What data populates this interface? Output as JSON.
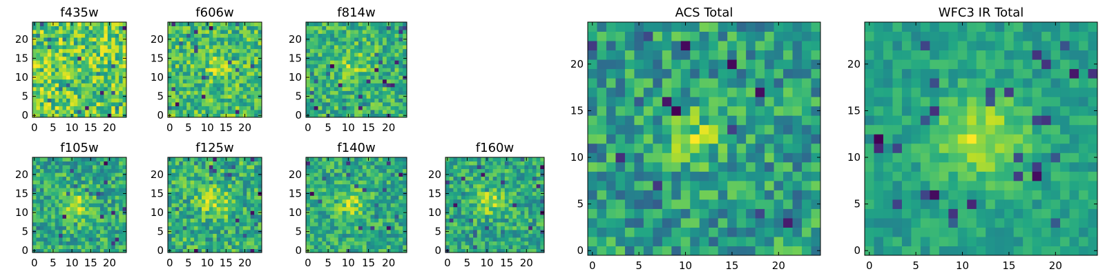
{
  "chart_data": [
    {
      "type": "heatmap",
      "title": "f435w",
      "xlim": [
        -0.5,
        24.5
      ],
      "ylim": [
        -0.5,
        24.5
      ],
      "xticks": [
        0,
        5,
        10,
        15,
        20
      ],
      "yticks": [
        0,
        5,
        10,
        15,
        20
      ],
      "grid": false,
      "colormap": "viridis",
      "image_size": [
        25,
        25
      ],
      "peak_center": null,
      "noise_character": "dense uniform noise with scattered dark pixels"
    },
    {
      "type": "heatmap",
      "title": "f606w",
      "xlim": [
        -0.5,
        24.5
      ],
      "ylim": [
        -0.5,
        24.5
      ],
      "xticks": [
        0,
        5,
        10,
        15,
        20
      ],
      "yticks": [
        0,
        5,
        10,
        15,
        20
      ],
      "grid": false,
      "colormap": "viridis",
      "image_size": [
        25,
        25
      ],
      "peak_center": [
        12,
        13
      ],
      "noise_character": "noisy with faint central brightening"
    },
    {
      "type": "heatmap",
      "title": "f814w",
      "xlim": [
        -0.5,
        24.5
      ],
      "ylim": [
        -0.5,
        24.5
      ],
      "xticks": [
        0,
        5,
        10,
        15,
        20
      ],
      "yticks": [
        0,
        5,
        10,
        15,
        20
      ],
      "grid": false,
      "colormap": "viridis",
      "image_size": [
        25,
        25
      ],
      "peak_center": [
        11,
        13
      ],
      "noise_character": "noisy with faint central source"
    },
    {
      "type": "heatmap",
      "title": "f105w",
      "xlim": [
        -0.5,
        24.5
      ],
      "ylim": [
        -0.5,
        24.5
      ],
      "xticks": [
        0,
        5,
        10,
        15,
        20
      ],
      "yticks": [
        0,
        5,
        10,
        15,
        20
      ],
      "grid": false,
      "colormap": "viridis",
      "image_size": [
        25,
        25
      ],
      "peak_center": [
        11,
        12
      ],
      "noise_character": "central bright source with noise"
    },
    {
      "type": "heatmap",
      "title": "f125w",
      "xlim": [
        -0.5,
        24.5
      ],
      "ylim": [
        -0.5,
        24.5
      ],
      "xticks": [
        0,
        5,
        10,
        15,
        20
      ],
      "yticks": [
        0,
        5,
        10,
        15,
        20
      ],
      "grid": false,
      "colormap": "viridis",
      "image_size": [
        25,
        25
      ],
      "peak_center": [
        12,
        13
      ],
      "noise_character": "central bright source with noise"
    },
    {
      "type": "heatmap",
      "title": "f140w",
      "xlim": [
        -0.5,
        24.5
      ],
      "ylim": [
        -0.5,
        24.5
      ],
      "xticks": [
        0,
        5,
        10,
        15,
        20
      ],
      "yticks": [
        0,
        5,
        10,
        15,
        20
      ],
      "grid": false,
      "colormap": "viridis",
      "image_size": [
        25,
        25
      ],
      "peak_center": [
        11,
        12
      ],
      "noise_character": "central bright source with noise"
    },
    {
      "type": "heatmap",
      "title": "f160w",
      "xlim": [
        -0.5,
        24.5
      ],
      "ylim": [
        -0.5,
        24.5
      ],
      "xticks": [
        0,
        5,
        10,
        15,
        20
      ],
      "yticks": [
        0,
        5,
        10,
        15,
        20
      ],
      "grid": false,
      "colormap": "viridis",
      "image_size": [
        25,
        25
      ],
      "peak_center": [
        11,
        13
      ],
      "noise_character": "central bright source with noise"
    },
    {
      "type": "heatmap",
      "title": "ACS Total",
      "xlim": [
        -0.5,
        24.5
      ],
      "ylim": [
        -0.5,
        24.5
      ],
      "xticks": [
        0,
        5,
        10,
        15,
        20
      ],
      "yticks": [
        0,
        5,
        10,
        15,
        20
      ],
      "grid": false,
      "colormap": "viridis",
      "image_size": [
        25,
        25
      ],
      "peak_center": [
        11,
        12
      ],
      "noise_character": "noisy with central bright source"
    },
    {
      "type": "heatmap",
      "title": "WFC3 IR Total",
      "xlim": [
        -0.5,
        24.5
      ],
      "ylim": [
        -0.5,
        24.5
      ],
      "xticks": [
        0,
        5,
        10,
        15,
        20
      ],
      "yticks": [
        0,
        5,
        10,
        15,
        20
      ],
      "grid": false,
      "colormap": "viridis",
      "image_size": [
        25,
        25
      ],
      "peak_center": [
        12,
        12
      ],
      "noise_character": "smooth central bright source with dark patches"
    }
  ]
}
